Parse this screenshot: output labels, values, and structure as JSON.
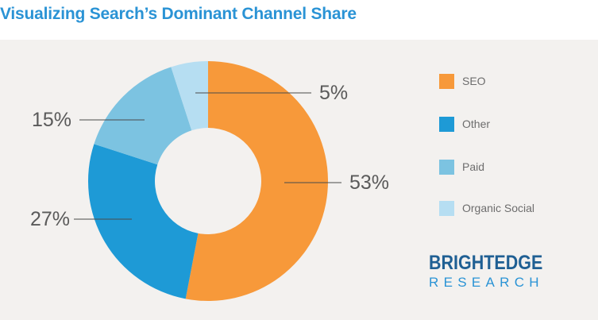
{
  "title": "Visualizing Search’s Dominant Channel Share",
  "colors": {
    "title": "#2a93d5",
    "panel_bg": "#f3f1ef",
    "brand_line1": "#1f5f93",
    "brand_line2": "#2a93d5",
    "leader": "#4a4a4a"
  },
  "chart_data": {
    "type": "pie",
    "donut": true,
    "title": "Visualizing Search’s Dominant Channel Share",
    "categories": [
      "SEO",
      "Other",
      "Paid",
      "Organic Social"
    ],
    "values": [
      53,
      27,
      15,
      5
    ],
    "labels": [
      "53%",
      "27%",
      "15%",
      "5%"
    ],
    "colors": [
      "#f7993a",
      "#1e9ad6",
      "#7cc3e1",
      "#b6def2"
    ],
    "legend_position": "right",
    "start_angle": "top, clockwise"
  },
  "brand": {
    "line1": "BRIGHTEDGE",
    "line2": "RESEARCH"
  }
}
